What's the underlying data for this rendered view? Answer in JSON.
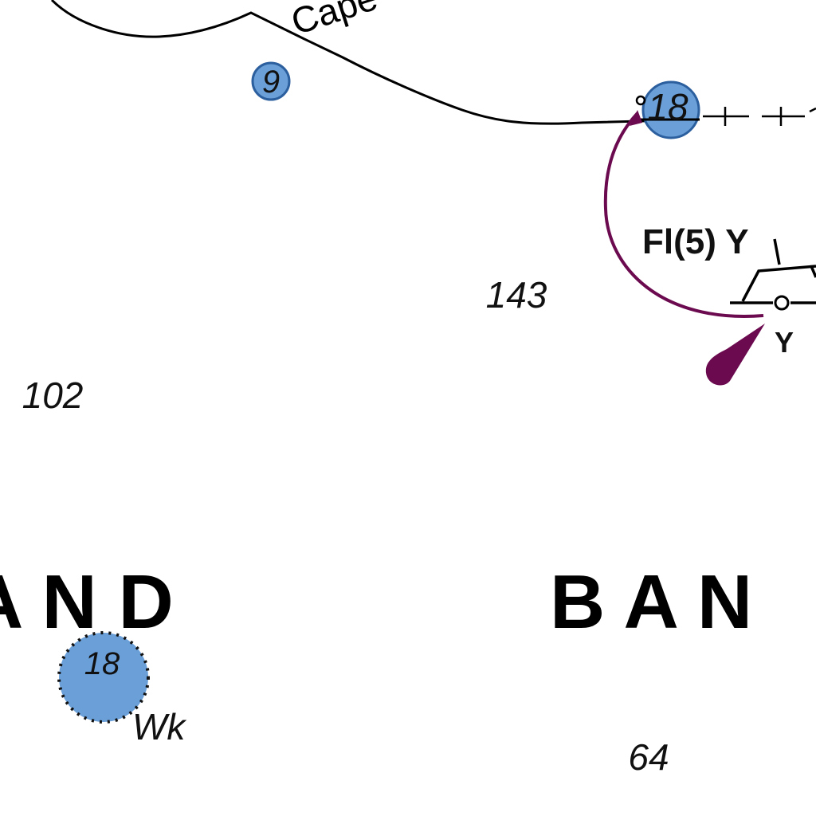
{
  "map": {
    "coast_name": "Cape",
    "area_names": {
      "left": "A N D",
      "right": "B A N"
    },
    "soundings": {
      "s143": "143",
      "s102": "102",
      "s64": "64"
    },
    "rocks": {
      "small": "9",
      "coast": "18",
      "wreck_depth": "18"
    },
    "wreck_label": "Wk",
    "light": {
      "characteristic": "Fl(5) Y",
      "buoy_colour": "Y"
    },
    "colors": {
      "danger_fill": "#6a9fd8",
      "danger_outline": "#2c5f9e",
      "light_flare": "#6b0a4f",
      "coastline": "#000000"
    }
  }
}
